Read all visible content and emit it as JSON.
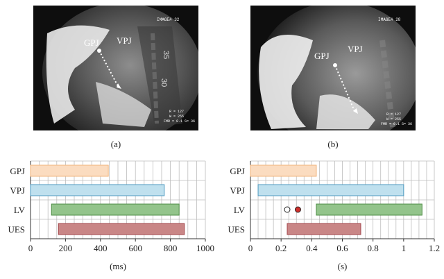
{
  "panels": [
    {
      "caption": "(a)",
      "image": {
        "labels": [
          "GPJ",
          "VPJ"
        ],
        "overlay_text": [
          "IMAGE# 32",
          "35",
          "30",
          "R = 127",
          "W = 255",
          "FMR = 0.1 S= 36"
        ]
      },
      "chart_data": {
        "type": "bar",
        "orientation": "horizontal",
        "categories": [
          "GPJ",
          "VPJ",
          "LV",
          "UES"
        ],
        "series": [
          {
            "values": [
              [
                0,
                445
              ],
              [
                0,
                765
              ],
              [
                120,
                850
              ],
              [
                160,
                880
              ]
            ]
          }
        ],
        "colors": {
          "fill": [
            "#fbdcc0",
            "#bfe0ee",
            "#93c48b",
            "#c98686"
          ],
          "stroke": [
            "#f0b47c",
            "#4e9ac0",
            "#4e8d45",
            "#a3474c"
          ]
        },
        "xlim": [
          0,
          1000
        ],
        "xticks": [
          "0",
          "200",
          "400",
          "600",
          "800",
          "1000"
        ],
        "xlabel": "(ms)",
        "grid": true
      }
    },
    {
      "caption": "(b)",
      "image": {
        "labels": [
          "GPJ",
          "VPJ"
        ],
        "overlay_text": [
          "IMAGE# 28",
          "R = 127",
          "W = 255",
          "FMR = 0.1 S= 36"
        ]
      },
      "chart_data": {
        "type": "bar",
        "orientation": "horizontal",
        "categories": [
          "GPJ",
          "VPJ",
          "LV",
          "UES"
        ],
        "series": [
          {
            "values": [
              [
                0,
                0.43
              ],
              [
                0.05,
                1.0
              ],
              [
                0.43,
                1.12
              ],
              [
                0.24,
                0.72
              ]
            ]
          }
        ],
        "markers": [
          {
            "category": "LV",
            "x": 0.24,
            "fill": "#ffffff"
          },
          {
            "category": "LV",
            "x": 0.31,
            "fill": "#d0302c"
          }
        ],
        "colors": {
          "fill": [
            "#fbdcc0",
            "#bfe0ee",
            "#93c48b",
            "#c98686"
          ],
          "stroke": [
            "#f0b47c",
            "#4e9ac0",
            "#4e8d45",
            "#a3474c"
          ]
        },
        "xlim": [
          0,
          1.2
        ],
        "xticks": [
          "0",
          "0.2",
          "0.4",
          "0.6",
          "0.8",
          "1",
          "1.2"
        ],
        "xlabel": "(s)",
        "grid": true
      }
    }
  ]
}
